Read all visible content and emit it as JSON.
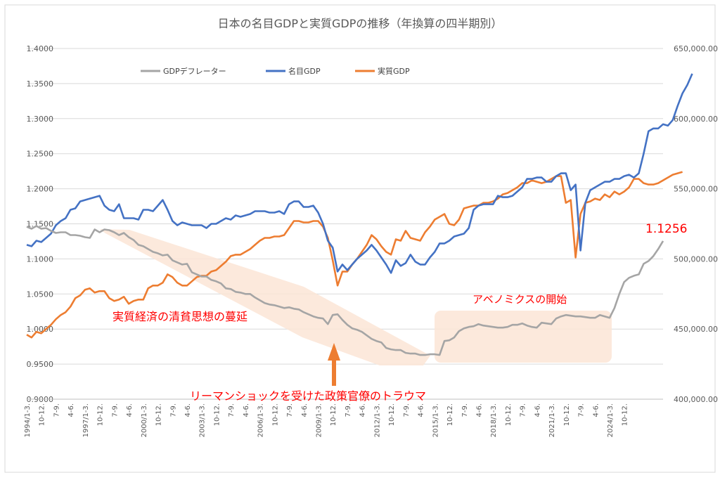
{
  "chart_data": {
    "type": "line",
    "title": "日本の名目GDPと実質GDPの推移（年換算の四半期別）",
    "left_axis": {
      "min": 0.9,
      "max": 1.4,
      "ticks": [
        "0.9000",
        "0.9500",
        "1.0000",
        "1.0500",
        "1.1000",
        "1.1500",
        "1.2000",
        "1.2500",
        "1.3000",
        "1.3500",
        "1.4000"
      ]
    },
    "right_axis": {
      "min": 400000,
      "max": 650000,
      "ticks": [
        "400,000.00",
        "450,000.00",
        "500,000.00",
        "550,000.00",
        "600,000.00",
        "650,000.00"
      ]
    },
    "x_start_quarter": "1994/1-3.",
    "x_tick_labels": [
      "1994/1-3.",
      "10-12.",
      "7-9.",
      "4-6.",
      "1997/1-3.",
      "10-12.",
      "7-9.",
      "4-6.",
      "2000/1-3.",
      "10-12.",
      "7-9.",
      "4-6.",
      "2003/1-3.",
      "10-12.",
      "7-9.",
      "4-6.",
      "2006/1-3.",
      "10-12.",
      "7-9.",
      "4-6.",
      "2009/1-3.",
      "10-12.",
      "7-9.",
      "4-6.",
      "2012/1-3.",
      "10-12.",
      "7-9.",
      "4-6.",
      "2015/1-3.",
      "10-12.",
      "7-9.",
      "4-6.",
      "2018/1-3.",
      "10-12.",
      "7-9.",
      "4-6.",
      "2021/1-3.",
      "10-12.",
      "7-9.",
      "4-6.",
      "2024/1-3.",
      "10-12."
    ],
    "grid": true,
    "legend_position": "top-left",
    "series": [
      {
        "name": "GDPデフレーター",
        "axis": "left",
        "color": "#a5a5a5",
        "values": [
          1.146,
          1.143,
          1.147,
          1.143,
          1.144,
          1.14,
          1.137,
          1.138,
          1.138,
          1.134,
          1.134,
          1.133,
          1.131,
          1.13,
          1.142,
          1.138,
          1.142,
          1.141,
          1.138,
          1.134,
          1.137,
          1.131,
          1.127,
          1.12,
          1.118,
          1.114,
          1.11,
          1.108,
          1.105,
          1.106,
          1.098,
          1.095,
          1.092,
          1.093,
          1.081,
          1.078,
          1.075,
          1.075,
          1.07,
          1.068,
          1.065,
          1.058,
          1.057,
          1.053,
          1.052,
          1.05,
          1.05,
          1.045,
          1.041,
          1.037,
          1.035,
          1.034,
          1.032,
          1.03,
          1.031,
          1.029,
          1.028,
          1.024,
          1.021,
          1.018,
          1.016,
          1.015,
          1.007,
          1.02,
          1.021,
          1.013,
          1.006,
          1.001,
          0.999,
          0.996,
          0.991,
          0.986,
          0.983,
          0.981,
          0.973,
          0.971,
          0.97,
          0.97,
          0.966,
          0.965,
          0.965,
          0.963,
          0.963,
          0.964,
          0.964,
          0.963,
          0.983,
          0.984,
          0.988,
          0.997,
          1.001,
          1.003,
          1.004,
          1.007,
          1.005,
          1.004,
          1.003,
          1.002,
          1.002,
          1.003,
          1.006,
          1.006,
          1.008,
          1.005,
          1.003,
          1.002,
          1.009,
          1.008,
          1.007,
          1.015,
          1.018,
          1.02,
          1.019,
          1.018,
          1.018,
          1.017,
          1.016,
          1.016,
          1.02,
          1.018,
          1.016,
          1.03,
          1.05,
          1.067,
          1.073,
          1.076,
          1.078,
          1.093,
          1.097,
          1.104,
          1.114,
          1.1256
        ]
      },
      {
        "name": "名目GDP",
        "axis": "right",
        "color": "#4472c4",
        "values": [
          510000,
          509000,
          513000,
          512000,
          515000,
          518000,
          524000,
          527000,
          529000,
          535000,
          536000,
          541000,
          542000,
          543000,
          544000,
          545000,
          538000,
          535000,
          534000,
          539000,
          529000,
          529000,
          529000,
          528000,
          535000,
          535000,
          534000,
          538000,
          542000,
          535000,
          527000,
          524000,
          526000,
          525000,
          524000,
          524000,
          524000,
          522000,
          525000,
          525000,
          527000,
          529000,
          528000,
          531000,
          530000,
          531000,
          532000,
          534000,
          534000,
          534000,
          533000,
          533000,
          534000,
          532000,
          539000,
          541000,
          541000,
          537000,
          537000,
          538000,
          533000,
          525000,
          513000,
          508000,
          491000,
          496000,
          492000,
          496000,
          500000,
          503000,
          506000,
          510000,
          506000,
          501000,
          496000,
          490000,
          499000,
          495000,
          497000,
          503000,
          498000,
          496000,
          496000,
          501000,
          505000,
          511000,
          511000,
          513000,
          516000,
          517000,
          518000,
          522000,
          535000,
          538000,
          539000,
          539000,
          539000,
          545000,
          544000,
          544000,
          545000,
          548000,
          551000,
          557000,
          557000,
          558000,
          558000,
          555000,
          555000,
          559000,
          561000,
          561000,
          549000,
          553000,
          506000,
          540000,
          549000,
          551000,
          553000,
          555000,
          555000,
          557000,
          557000,
          559000,
          560000,
          558000,
          561000,
          575000,
          591000,
          593000,
          593000,
          596000,
          595000,
          599000,
          609000,
          618000,
          624000,
          632000
        ]
      },
      {
        "name": "実質GDP",
        "axis": "right",
        "color": "#ed7d31",
        "values": [
          446000,
          444000,
          448000,
          447000,
          450000,
          453000,
          457000,
          460000,
          462000,
          466000,
          472000,
          474000,
          478000,
          479000,
          476000,
          477000,
          477000,
          472000,
          470000,
          471000,
          473000,
          468000,
          470000,
          471000,
          471000,
          479000,
          481000,
          481000,
          483000,
          489000,
          487000,
          483000,
          481000,
          481000,
          484000,
          487000,
          488000,
          488000,
          491000,
          492000,
          495000,
          498000,
          502000,
          503000,
          503000,
          505000,
          507000,
          510000,
          513000,
          515000,
          515000,
          516000,
          516000,
          517000,
          522000,
          527000,
          527000,
          526000,
          526000,
          527000,
          527000,
          523000,
          515000,
          499000,
          481000,
          491000,
          491000,
          496000,
          500000,
          505000,
          510000,
          517000,
          514000,
          509000,
          505000,
          503000,
          514000,
          513000,
          520000,
          515000,
          514000,
          513000,
          519000,
          523000,
          528000,
          530000,
          532000,
          525000,
          524000,
          528000,
          536000,
          537000,
          538000,
          538000,
          540000,
          540000,
          541000,
          543000,
          546000,
          547000,
          549000,
          551000,
          554000,
          554000,
          556000,
          555000,
          554000,
          555000,
          557000,
          559000,
          559000,
          540000,
          542000,
          501000,
          532000,
          540000,
          541000,
          543000,
          542000,
          546000,
          544000,
          548000,
          546000,
          548000,
          551000,
          557000,
          557000,
          554000,
          553000,
          553000,
          554000,
          556000,
          558000,
          560000,
          561000,
          562000
        ]
      }
    ],
    "annotations": {
      "deflator_value_label": "1.1256",
      "text_1": "実質経済の清貧思想の蔓延",
      "text_2": "リーマンショックを受けた政策官僚のトラウマ",
      "text_3": "アベノミクスの開始"
    }
  }
}
